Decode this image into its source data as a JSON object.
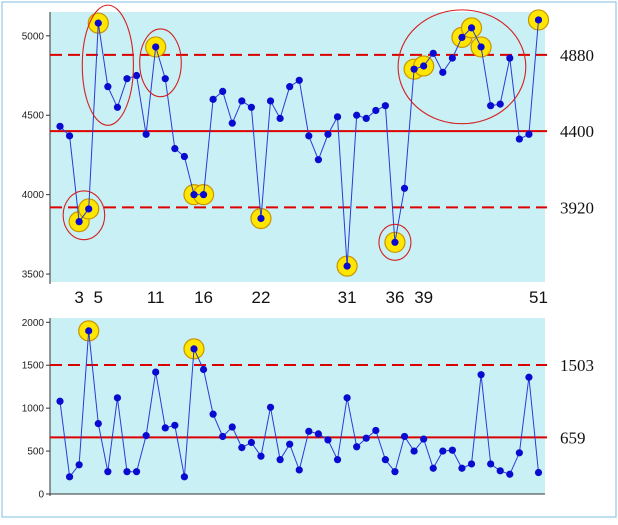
{
  "chart_data": [
    {
      "type": "line",
      "title": "",
      "xlabel": "",
      "ylabel": "",
      "ylim": [
        3450,
        5150
      ],
      "yticks": [
        3500,
        4000,
        4500,
        5000
      ],
      "ytick_labels": [
        "3500",
        "4000",
        "4500",
        "5000"
      ],
      "center_line": {
        "value": 4400,
        "label": "4400",
        "color": "#dd0000"
      },
      "upper_limit": {
        "value": 4880,
        "label": "4880",
        "color": "#dd0000"
      },
      "lower_limit": {
        "value": 3920,
        "label": "3920",
        "color": "#dd0000"
      },
      "x_annotations": [
        {
          "x": 3,
          "label": "3"
        },
        {
          "x": 5,
          "label": "5"
        },
        {
          "x": 11,
          "label": "11"
        },
        {
          "x": 16,
          "label": "16"
        },
        {
          "x": 22,
          "label": "22"
        },
        {
          "x": 31,
          "label": "31"
        },
        {
          "x": 36,
          "label": "36"
        },
        {
          "x": 39,
          "label": "39"
        },
        {
          "x": 51,
          "label": "51"
        }
      ],
      "x": [
        1,
        2,
        3,
        4,
        5,
        6,
        7,
        8,
        9,
        10,
        11,
        12,
        13,
        14,
        15,
        16,
        17,
        18,
        19,
        20,
        21,
        22,
        23,
        24,
        25,
        26,
        27,
        28,
        29,
        30,
        31,
        32,
        33,
        34,
        35,
        36,
        37,
        38,
        39,
        40,
        41,
        42,
        43,
        44,
        45,
        46,
        47,
        48,
        49,
        50,
        51
      ],
      "values": [
        4430,
        4370,
        3830,
        3910,
        5080,
        4680,
        4550,
        4730,
        4750,
        4380,
        4930,
        4730,
        4290,
        4240,
        4000,
        4000,
        4600,
        4650,
        4450,
        4590,
        4550,
        3850,
        4590,
        4480,
        4680,
        4720,
        4370,
        4220,
        4380,
        4490,
        3550,
        4500,
        4480,
        4530,
        4560,
        3700,
        4040,
        4790,
        4810,
        4890,
        4770,
        4860,
        4990,
        5050,
        4930,
        4560,
        4570,
        4860,
        4350,
        4380,
        5100
      ],
      "highlighted_points": [
        3,
        4,
        5,
        11,
        15,
        16,
        22,
        31,
        36,
        38,
        39,
        43,
        44,
        45,
        51
      ],
      "highlight_color": "#ffe600",
      "point_color": "#0a0ad0",
      "line_color": "#2a3ad8",
      "circled_groups": [
        {
          "from": 3,
          "to": 4
        },
        {
          "from": 5,
          "to": 7
        },
        {
          "from": 11,
          "to": 12
        },
        {
          "from": 36,
          "to": 36
        },
        {
          "from": 38,
          "to": 48
        }
      ]
    },
    {
      "type": "line",
      "title": "",
      "xlabel": "",
      "ylabel": "",
      "ylim": [
        0,
        2050
      ],
      "yticks": [
        0,
        500,
        1000,
        1500,
        2000
      ],
      "ytick_labels": [
        "0",
        "500",
        "1000",
        "1500",
        "2000"
      ],
      "center_line": {
        "value": 659,
        "label": "659",
        "color": "#dd0000"
      },
      "upper_limit": {
        "value": 1503,
        "label": "1503",
        "color": "#dd0000"
      },
      "x": [
        1,
        2,
        3,
        4,
        5,
        6,
        7,
        8,
        9,
        10,
        11,
        12,
        13,
        14,
        15,
        16,
        17,
        18,
        19,
        20,
        21,
        22,
        23,
        24,
        25,
        26,
        27,
        28,
        29,
        30,
        31,
        32,
        33,
        34,
        35,
        36,
        37,
        38,
        39,
        40,
        41,
        42,
        43,
        44,
        45,
        46,
        47,
        48,
        49,
        50,
        51
      ],
      "values": [
        1080,
        200,
        340,
        1900,
        820,
        260,
        1120,
        260,
        260,
        680,
        1420,
        770,
        800,
        200,
        1690,
        1450,
        930,
        670,
        780,
        540,
        600,
        440,
        1010,
        400,
        580,
        280,
        730,
        700,
        630,
        400,
        1120,
        550,
        650,
        740,
        400,
        260,
        670,
        500,
        640,
        300,
        500,
        510,
        300,
        350,
        1390,
        350,
        270,
        230,
        480,
        1360,
        250
      ],
      "highlighted_points": [
        4,
        15
      ],
      "highlight_color": "#ffe600",
      "point_color": "#0a0ad0",
      "line_color": "#2a3ad8"
    }
  ]
}
